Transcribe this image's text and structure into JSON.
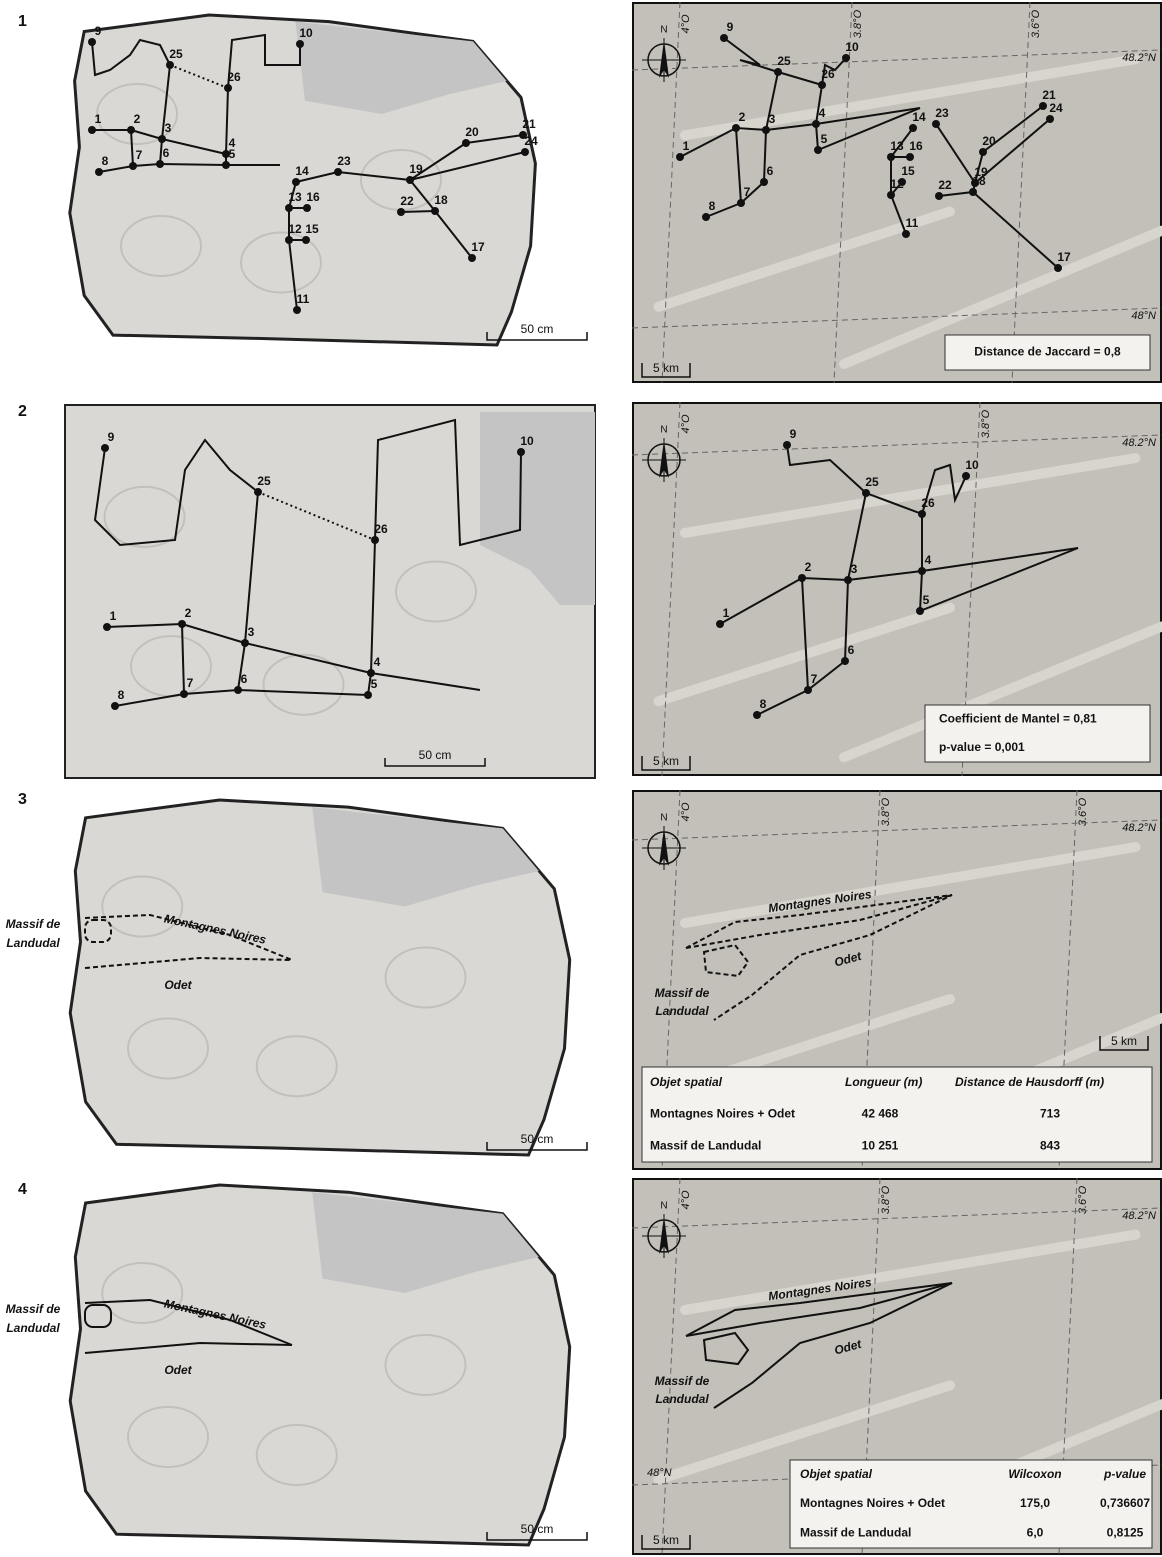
{
  "panels": [
    {
      "number": "1",
      "stone": {
        "nodes": [
          "1",
          "2",
          "3",
          "4",
          "5",
          "6",
          "7",
          "8",
          "9",
          "10",
          "11",
          "12",
          "13",
          "14",
          "15",
          "16",
          "17",
          "18",
          "19",
          "20",
          "21",
          "22",
          "23",
          "24",
          "25",
          "26"
        ],
        "scale": "50 cm"
      },
      "map": {
        "north": "N",
        "lon": [
          "4°O",
          "3.8°O",
          "3.6°O"
        ],
        "lat": [
          "48.2°N",
          "48°N"
        ],
        "nodes": [
          "1",
          "2",
          "3",
          "4",
          "5",
          "6",
          "7",
          "8",
          "9",
          "10",
          "11",
          "12",
          "13",
          "14",
          "15",
          "16",
          "17",
          "18",
          "19",
          "20",
          "21",
          "22",
          "23",
          "24",
          "25",
          "26"
        ],
        "scale": "5 km",
        "box": [
          "Distance de Jaccard = 0,8"
        ]
      }
    },
    {
      "number": "2",
      "stone": {
        "nodes": [
          "1",
          "2",
          "3",
          "4",
          "5",
          "6",
          "7",
          "8",
          "9",
          "10",
          "25",
          "26"
        ],
        "scale": "50 cm"
      },
      "map": {
        "north": "N",
        "lon": [
          "4°O",
          "3.8°O"
        ],
        "lat": [
          "48.2°N"
        ],
        "nodes": [
          "1",
          "2",
          "3",
          "4",
          "5",
          "6",
          "7",
          "8",
          "9",
          "10",
          "25",
          "26"
        ],
        "scale": "5 km",
        "box": [
          "Coefficient de Mantel = 0,81",
          "p-value = 0,001"
        ]
      }
    },
    {
      "number": "3",
      "stone": {
        "regions": [
          "Montagnes Noires",
          "Odet"
        ],
        "landudal": [
          "Massif de",
          "Landudal"
        ],
        "scale": "50 cm"
      },
      "map": {
        "north": "N",
        "lon": [
          "4°O",
          "3.8°O",
          "3.6°O"
        ],
        "lat": [
          "48.2°N"
        ],
        "regions": [
          "Montagnes Noires",
          "Odet"
        ],
        "landudal": [
          "Massif de",
          "Landudal"
        ],
        "scale": "5 km",
        "table": {
          "header": [
            "Objet spatial",
            "Longueur (m)",
            "Distance de Hausdorff (m)"
          ],
          "rows": [
            [
              "Montagnes Noires + Odet",
              "42 468",
              "713"
            ],
            [
              "Massif de Landudal",
              "10 251",
              "843"
            ]
          ]
        }
      }
    },
    {
      "number": "4",
      "stone": {
        "regions": [
          "Montagnes Noires",
          "Odet"
        ],
        "landudal": [
          "Massif de",
          "Landudal"
        ],
        "scale": "50 cm"
      },
      "map": {
        "north": "N",
        "lon": [
          "4°O",
          "3.8°O",
          "3.6°O"
        ],
        "lat": [
          "48.2°N",
          "48°N"
        ],
        "regions": [
          "Montagnes Noires",
          "Odet"
        ],
        "landudal": [
          "Massif de",
          "Landudal"
        ],
        "scale": "5 km",
        "table": {
          "header": [
            "Objet spatial",
            "Wilcoxon",
            "p-value"
          ],
          "rows": [
            [
              "Montagnes Noires + Odet",
              "175,0",
              "0,736607"
            ],
            [
              "Massif de Landudal",
              "6,0",
              "0,8125"
            ]
          ]
        }
      }
    }
  ]
}
